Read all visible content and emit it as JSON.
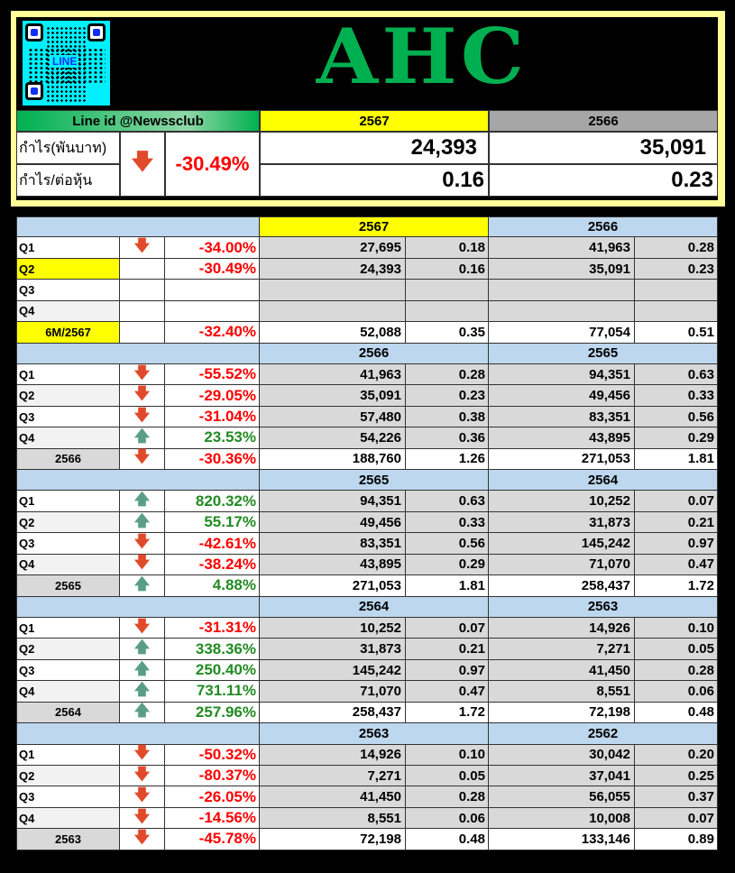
{
  "header": {
    "title": "AHC",
    "qr_label": "LINE",
    "line_id": "Line id @Newssclub",
    "year_current": "2567",
    "year_previous": "2566",
    "profit_label": "กำไร(พันบาท)",
    "eps_label": "กำไร/ต่อหุ้น",
    "change_icon": "arrow-down-icon",
    "change": "-30.49%",
    "profit_current": "24,393",
    "profit_previous": "35,091",
    "eps_current": "0.16",
    "eps_previous": "0.23"
  },
  "colors": {
    "title": "#00b050",
    "current_year": "#ffff00",
    "previous_year": "#a6a6a6",
    "block_header": "#bdd7ee",
    "negative": "#ff0000",
    "positive": "#228b22"
  },
  "blocks": [
    {
      "year_a": "2567",
      "year_b": "2566",
      "highlight": true,
      "rows": [
        {
          "label": "Q1",
          "arrow": "down",
          "pct": "-34.00%",
          "va": "27,695",
          "ea": "0.18",
          "vb": "41,963",
          "eb": "0.28"
        },
        {
          "label": "Q2",
          "arrow": "",
          "pct": "-30.49%",
          "va": "24,393",
          "ea": "0.16",
          "vb": "35,091",
          "eb": "0.23",
          "label_highlight": true
        },
        {
          "label": "Q3",
          "arrow": "",
          "pct": "",
          "va": "",
          "ea": "",
          "vb": "",
          "eb": ""
        },
        {
          "label": "Q4",
          "arrow": "",
          "pct": "",
          "va": "",
          "ea": "",
          "vb": "",
          "eb": ""
        },
        {
          "label": "6M/2567",
          "arrow": "",
          "pct": "-32.40%",
          "va": "52,088",
          "ea": "0.35",
          "vb": "77,054",
          "eb": "0.51",
          "total": true,
          "label_highlight": true
        }
      ]
    },
    {
      "year_a": "2566",
      "year_b": "2565",
      "rows": [
        {
          "label": "Q1",
          "arrow": "down",
          "pct": "-55.52%",
          "va": "41,963",
          "ea": "0.28",
          "vb": "94,351",
          "eb": "0.63"
        },
        {
          "label": "Q2",
          "arrow": "down",
          "pct": "-29.05%",
          "va": "35,091",
          "ea": "0.23",
          "vb": "49,456",
          "eb": "0.33"
        },
        {
          "label": "Q3",
          "arrow": "down",
          "pct": "-31.04%",
          "va": "57,480",
          "ea": "0.38",
          "vb": "83,351",
          "eb": "0.56"
        },
        {
          "label": "Q4",
          "arrow": "up",
          "pct": "23.53%",
          "va": "54,226",
          "ea": "0.36",
          "vb": "43,895",
          "eb": "0.29"
        },
        {
          "label": "2566",
          "arrow": "down",
          "pct": "-30.36%",
          "va": "188,760",
          "ea": "1.26",
          "vb": "271,053",
          "eb": "1.81",
          "total": true
        }
      ]
    },
    {
      "year_a": "2565",
      "year_b": "2564",
      "rows": [
        {
          "label": "Q1",
          "arrow": "up",
          "pct": "820.32%",
          "va": "94,351",
          "ea": "0.63",
          "vb": "10,252",
          "eb": "0.07"
        },
        {
          "label": "Q2",
          "arrow": "up",
          "pct": "55.17%",
          "va": "49,456",
          "ea": "0.33",
          "vb": "31,873",
          "eb": "0.21"
        },
        {
          "label": "Q3",
          "arrow": "down",
          "pct": "-42.61%",
          "va": "83,351",
          "ea": "0.56",
          "vb": "145,242",
          "eb": "0.97"
        },
        {
          "label": "Q4",
          "arrow": "down",
          "pct": "-38.24%",
          "va": "43,895",
          "ea": "0.29",
          "vb": "71,070",
          "eb": "0.47"
        },
        {
          "label": "2565",
          "arrow": "up",
          "pct": "4.88%",
          "va": "271,053",
          "ea": "1.81",
          "vb": "258,437",
          "eb": "1.72",
          "total": true
        }
      ]
    },
    {
      "year_a": "2564",
      "year_b": "2563",
      "rows": [
        {
          "label": "Q1",
          "arrow": "down",
          "pct": "-31.31%",
          "va": "10,252",
          "ea": "0.07",
          "vb": "14,926",
          "eb": "0.10"
        },
        {
          "label": "Q2",
          "arrow": "up",
          "pct": "338.36%",
          "va": "31,873",
          "ea": "0.21",
          "vb": "7,271",
          "eb": "0.05"
        },
        {
          "label": "Q3",
          "arrow": "up",
          "pct": "250.40%",
          "va": "145,242",
          "ea": "0.97",
          "vb": "41,450",
          "eb": "0.28"
        },
        {
          "label": "Q4",
          "arrow": "up",
          "pct": "731.11%",
          "va": "71,070",
          "ea": "0.47",
          "vb": "8,551",
          "eb": "0.06"
        },
        {
          "label": "2564",
          "arrow": "up",
          "pct": "257.96%",
          "va": "258,437",
          "ea": "1.72",
          "vb": "72,198",
          "eb": "0.48",
          "total": true
        }
      ]
    },
    {
      "year_a": "2563",
      "year_b": "2562",
      "rows": [
        {
          "label": "Q1",
          "arrow": "down",
          "pct": "-50.32%",
          "va": "14,926",
          "ea": "0.10",
          "vb": "30,042",
          "eb": "0.20"
        },
        {
          "label": "Q2",
          "arrow": "down",
          "pct": "-80.37%",
          "va": "7,271",
          "ea": "0.05",
          "vb": "37,041",
          "eb": "0.25"
        },
        {
          "label": "Q3",
          "arrow": "down",
          "pct": "-26.05%",
          "va": "41,450",
          "ea": "0.28",
          "vb": "56,055",
          "eb": "0.37"
        },
        {
          "label": "Q4",
          "arrow": "down",
          "pct": "-14.56%",
          "va": "8,551",
          "ea": "0.06",
          "vb": "10,008",
          "eb": "0.07"
        },
        {
          "label": "2563",
          "arrow": "down",
          "pct": "-45.78%",
          "va": "72,198",
          "ea": "0.48",
          "vb": "133,146",
          "eb": "0.89",
          "total": true
        }
      ]
    }
  ]
}
